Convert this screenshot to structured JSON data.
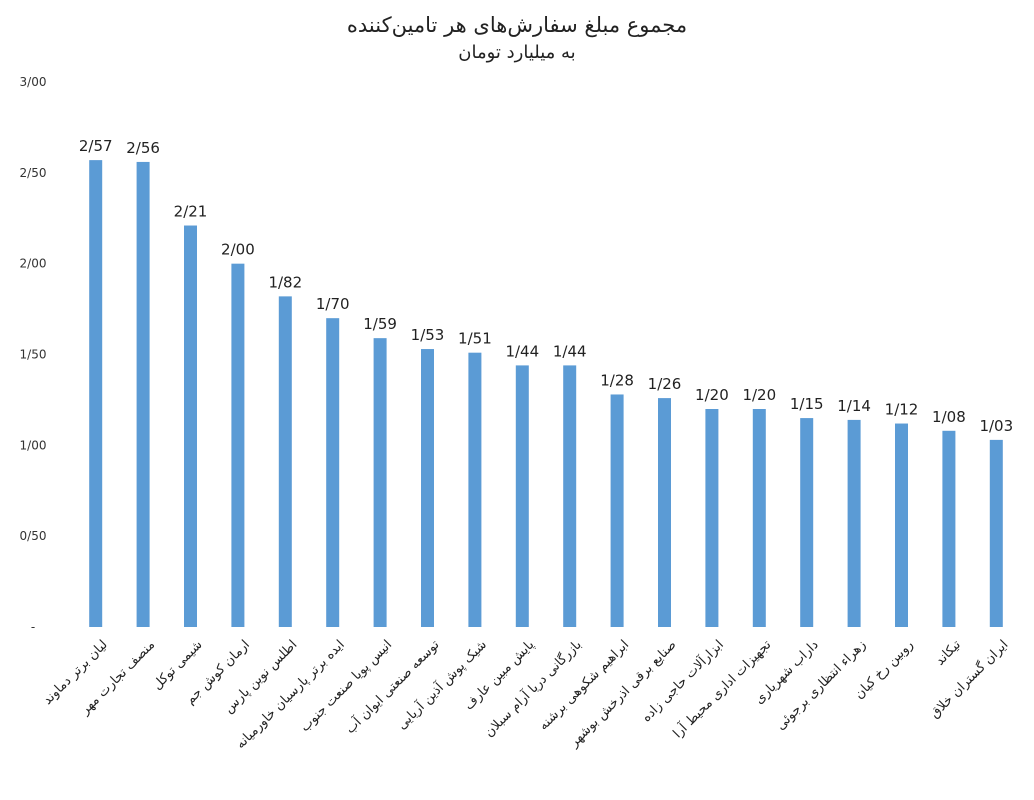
{
  "chart_data": {
    "type": "bar",
    "title": "مجموع مبلغ سفارش‌های هر تامین‌کننده",
    "subtitle": "به میلیارد تومان",
    "xlabel": "",
    "ylabel": "",
    "ylim": [
      0,
      3
    ],
    "yticks": [
      {
        "value": 0,
        "label": "-"
      },
      {
        "value": 0.5,
        "label": "0/50"
      },
      {
        "value": 1,
        "label": "1/00"
      },
      {
        "value": 1.5,
        "label": "1/50"
      },
      {
        "value": 2,
        "label": "2/00"
      },
      {
        "value": 2.5,
        "label": "2/50"
      },
      {
        "value": 3,
        "label": "3/00"
      }
    ],
    "categories": [
      "لیان برتر دماوند",
      "منصف تجارت مهر",
      "شیمی توکل",
      "ارمان کوش جم",
      "اطلس نوین پارس",
      "ایده برتر پارسیان خاورمیانه",
      "انیس پویا صنعت جنوب",
      "توسعه صنعتی ایوان آب",
      "شیک پوش آذین آریایی",
      "پایش مبین عارف",
      "بازرگانی دریا آرام سبلان",
      "ابراهیم شکوهی برشنه",
      "صنایع برقی اذرخش بوشهر",
      "ابزارآلات حاجی زاده",
      "تجهیزات اداری محیط آرا",
      "داراب شهریاری",
      "زهراء انتظاری برجوئی",
      "روبین رخ کیان",
      "تیکاند",
      "ایران گستران خلاق"
    ],
    "values": [
      2.57,
      2.56,
      2.21,
      2.0,
      1.82,
      1.7,
      1.59,
      1.53,
      1.51,
      1.44,
      1.44,
      1.28,
      1.26,
      1.2,
      1.2,
      1.15,
      1.14,
      1.12,
      1.08,
      1.03
    ],
    "value_labels": [
      "2/57",
      "2/56",
      "2/21",
      "2/00",
      "1/82",
      "1/70",
      "1/59",
      "1/53",
      "1/51",
      "1/44",
      "1/44",
      "1/28",
      "1/26",
      "1/20",
      "1/20",
      "1/15",
      "1/14",
      "1/12",
      "1/08",
      "1/03"
    ],
    "bar_color": "#5b9bd5",
    "grid": false,
    "legend": "none"
  }
}
